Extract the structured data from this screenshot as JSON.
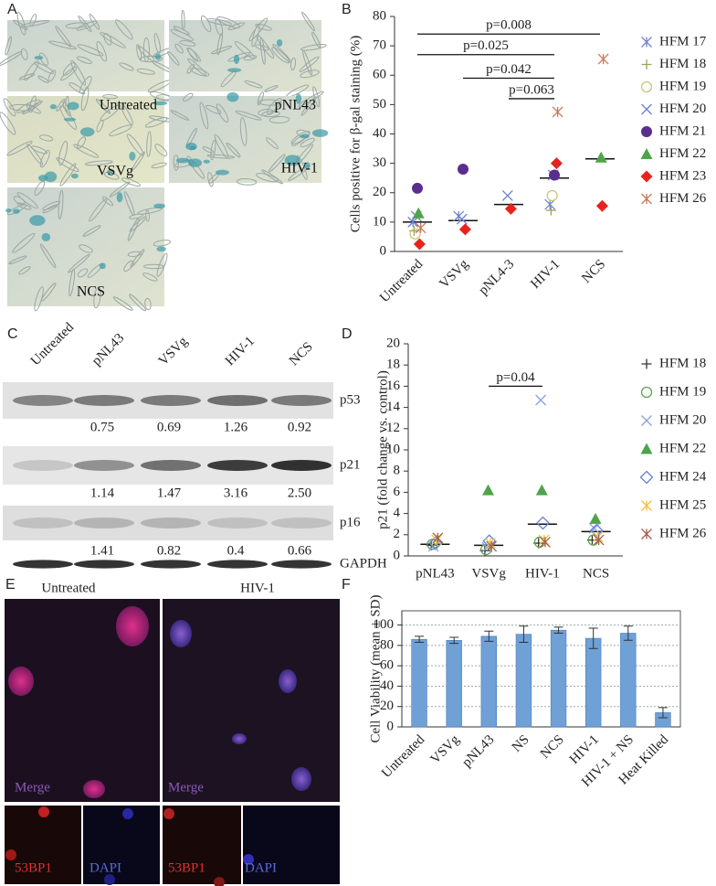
{
  "panel_labels": [
    "A",
    "B",
    "C",
    "D",
    "E",
    "F"
  ],
  "panel_a": {
    "labels": [
      "Untreated",
      "pNL43",
      "VSVg",
      "HIV-1",
      "NCS"
    ]
  },
  "panel_c": {
    "lanes": [
      "Untreated",
      "pNL43",
      "VSVg",
      "HIV-1",
      "NCS"
    ],
    "proteins": [
      "p53",
      "p21",
      "p16",
      "GAPDH"
    ],
    "ratios": [
      [
        "0.75",
        "0.69",
        "1.26",
        "0.92"
      ],
      [
        "1.14",
        "1.47",
        "3.16",
        "2.50"
      ],
      [
        "1.41",
        "0.82",
        "0.4",
        "0.66"
      ]
    ]
  },
  "panel_e": {
    "columns": [
      "Untreated",
      "HIV-1"
    ],
    "merge": "Merge",
    "channels": [
      "53BP1",
      "DAPI"
    ]
  },
  "chart_data": [
    {
      "type": "dot",
      "ylabel": "Cells positive for β-gal staining (%)",
      "categories": [
        "Untreated",
        "VSVg",
        "pNL4-3",
        "HIV-1",
        "NCS"
      ],
      "ylim": [
        0,
        80
      ],
      "yticks": [
        0,
        10,
        20,
        30,
        40,
        50,
        60,
        70,
        80
      ],
      "xtick_rotation": 45,
      "means": [
        10,
        10.5,
        16,
        25,
        31.5
      ],
      "series": [
        {
          "name": "HFM 17",
          "marker": "asterisk",
          "color": "#6f86c9",
          "values": [
            10,
            12,
            null,
            16,
            null
          ]
        },
        {
          "name": "HFM 18",
          "marker": "+",
          "color": "#9aa35a",
          "values": [
            7,
            null,
            null,
            14,
            null
          ]
        },
        {
          "name": "HFM 19",
          "marker": "circle-open",
          "color": "#c8c878",
          "values": [
            6,
            null,
            null,
            19,
            null
          ]
        },
        {
          "name": "HFM 20",
          "marker": "x",
          "color": "#6a7fd6",
          "values": [
            12,
            11,
            19,
            26,
            null
          ]
        },
        {
          "name": "HFM 21",
          "marker": "circle",
          "color": "#5b2d8e",
          "values": [
            21.5,
            28,
            null,
            26,
            null
          ]
        },
        {
          "name": "HFM 22",
          "marker": "triangle",
          "color": "#4fa34a",
          "values": [
            13,
            null,
            null,
            null,
            32
          ]
        },
        {
          "name": "HFM 23",
          "marker": "diamond",
          "color": "#e8231f",
          "values": [
            2.5,
            7.5,
            14.5,
            30,
            15.5
          ]
        },
        {
          "name": "HFM 26",
          "marker": "asterisk",
          "color": "#c8785a",
          "values": [
            8,
            null,
            null,
            47.5,
            65.5
          ]
        }
      ],
      "annotations": [
        {
          "text": "p=0.008",
          "from": "Untreated",
          "to": "NCS",
          "y": 74
        },
        {
          "text": "p=0.025",
          "from": "Untreated",
          "to": "HIV-1",
          "y": 67
        },
        {
          "text": "p=0.042",
          "from": "VSVg",
          "to": "HIV-1",
          "y": 59
        },
        {
          "text": "p=0.063",
          "from": "pNL4-3",
          "to": "HIV-1",
          "y": 52
        }
      ]
    },
    {
      "type": "dot",
      "ylabel": "p21 (fold change vs. control)",
      "categories": [
        "pNL43",
        "VSVg",
        "HIV-1",
        "NCS"
      ],
      "ylim": [
        0,
        20
      ],
      "yticks": [
        0,
        2,
        4,
        6,
        8,
        10,
        12,
        14,
        16,
        18,
        20
      ],
      "xtick_rotation": 0,
      "means": [
        1.1,
        1.0,
        3.0,
        2.3
      ],
      "series": [
        {
          "name": "HFM 18",
          "marker": "+",
          "color": "#333333",
          "values": [
            1,
            0.5,
            1.2,
            1.5
          ]
        },
        {
          "name": "HFM 19",
          "marker": "circle-open",
          "color": "#5aa850",
          "values": [
            1.1,
            0.6,
            1.3,
            1.5
          ]
        },
        {
          "name": "HFM 20",
          "marker": "x",
          "color": "#8aa0e6",
          "values": [
            0.9,
            0.8,
            14.7,
            2.6
          ]
        },
        {
          "name": "HFM 22",
          "marker": "triangle",
          "color": "#4fa34a",
          "values": [
            null,
            6.2,
            6.2,
            3.5
          ]
        },
        {
          "name": "HFM 24",
          "marker": "diamond-open",
          "color": "#6a7fd6",
          "values": [
            1.2,
            1.4,
            3.1,
            2.4
          ]
        },
        {
          "name": "HFM 25",
          "marker": "asterisk",
          "color": "#f2c040",
          "values": [
            1.5,
            1.2,
            1.5,
            1.8
          ]
        },
        {
          "name": "HFM 26",
          "marker": "asterisk",
          "color": "#a0604a",
          "values": [
            1.7,
            0.9,
            1.3,
            1.5
          ]
        }
      ],
      "annotations": [
        {
          "text": "p=0.04",
          "from": "VSVg",
          "to": "HIV-1",
          "y": 16
        }
      ]
    },
    {
      "type": "bar",
      "ylabel": "Cell Viability (mean ± SD)",
      "categories": [
        "Untreated",
        "VSVg",
        "pNL43",
        "NS",
        "NCS",
        "HIV-1",
        "HIV-1 + NS",
        "Heat Killed"
      ],
      "values": [
        86,
        85,
        89,
        91,
        95,
        87,
        92,
        14
      ],
      "errors": [
        3,
        3,
        5,
        8,
        3,
        10,
        7,
        5
      ],
      "color": "#6fa0d6",
      "ylim": [
        0,
        114
      ],
      "yticks": [
        0,
        20,
        40,
        60,
        80,
        100
      ],
      "grid": true,
      "frame": true,
      "xtick_rotation": 45
    }
  ]
}
